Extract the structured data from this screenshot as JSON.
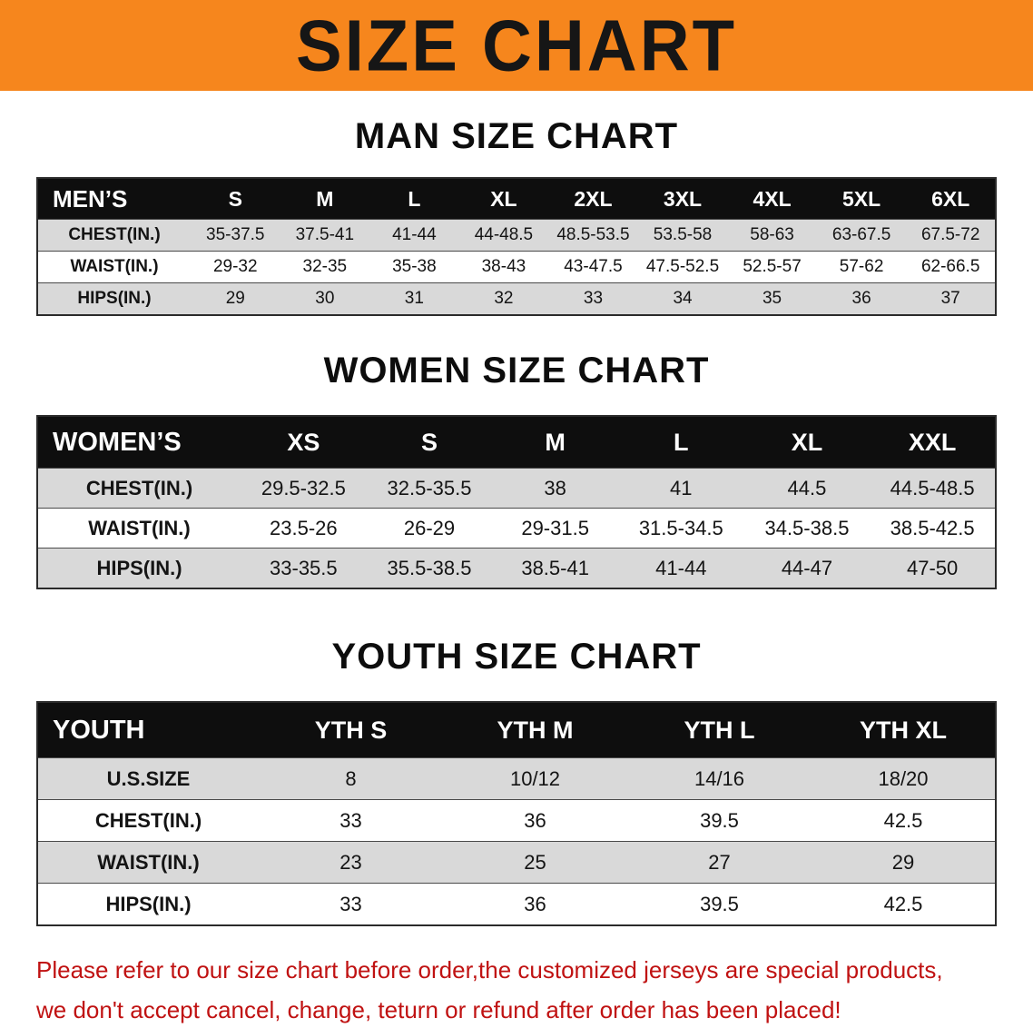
{
  "banner": {
    "title": "SIZE CHART"
  },
  "men": {
    "heading": "MAN SIZE CHART",
    "header": [
      "MEN’S",
      "S",
      "M",
      "L",
      "XL",
      "2XL",
      "3XL",
      "4XL",
      "5XL",
      "6XL"
    ],
    "rows": [
      [
        "CHEST(IN.)",
        "35-37.5",
        "37.5-41",
        "41-44",
        "44-48.5",
        "48.5-53.5",
        "53.5-58",
        "58-63",
        "63-67.5",
        "67.5-72"
      ],
      [
        "WAIST(IN.)",
        "29-32",
        "32-35",
        "35-38",
        "38-43",
        "43-47.5",
        "47.5-52.5",
        "52.5-57",
        "57-62",
        "62-66.5"
      ],
      [
        "HIPS(IN.)",
        "29",
        "30",
        "31",
        "32",
        "33",
        "34",
        "35",
        "36",
        "37"
      ]
    ]
  },
  "women": {
    "heading": "WOMEN SIZE CHART",
    "header": [
      "WOMEN’S",
      "XS",
      "S",
      "M",
      "L",
      "XL",
      "XXL"
    ],
    "rows": [
      [
        "CHEST(IN.)",
        "29.5-32.5",
        "32.5-35.5",
        "38",
        "41",
        "44.5",
        "44.5-48.5"
      ],
      [
        "WAIST(IN.)",
        "23.5-26",
        "26-29",
        "29-31.5",
        "31.5-34.5",
        "34.5-38.5",
        "38.5-42.5"
      ],
      [
        "HIPS(IN.)",
        "33-35.5",
        "35.5-38.5",
        "38.5-41",
        "41-44",
        "44-47",
        "47-50"
      ]
    ]
  },
  "youth": {
    "heading": "YOUTH SIZE CHART",
    "header": [
      "YOUTH",
      "YTH S",
      "YTH M",
      "YTH L",
      "YTH XL"
    ],
    "rows": [
      [
        "U.S.SIZE",
        "8",
        "10/12",
        "14/16",
        "18/20"
      ],
      [
        "CHEST(IN.)",
        "33",
        "36",
        "39.5",
        "42.5"
      ],
      [
        "WAIST(IN.)",
        "23",
        "25",
        "27",
        "29"
      ],
      [
        "HIPS(IN.)",
        "33",
        "36",
        "39.5",
        "42.5"
      ]
    ]
  },
  "disclaimer": {
    "line1": "Please refer to our size chart before order,the customized jerseys are special products,",
    "line2": "we don't accept cancel, change, teturn or refund after order has been placed!"
  },
  "colors": {
    "banner_orange": "#F6861D",
    "header_black": "#0E0E0E",
    "stripe_gray": "#D9D9D9",
    "disclaimer_red": "#C01212"
  }
}
